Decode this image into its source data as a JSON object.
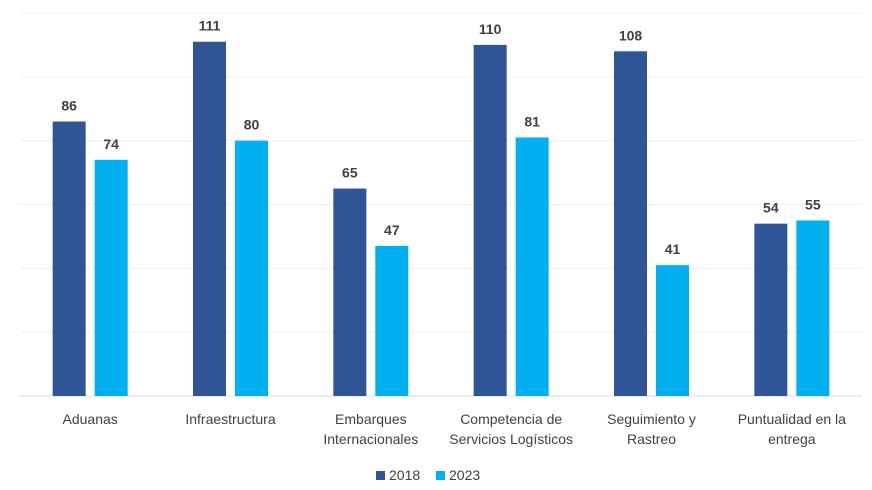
{
  "chart_data": {
    "type": "bar",
    "categories": [
      [
        "Aduanas"
      ],
      [
        "Infraestructura"
      ],
      [
        "Embarques",
        "Internacionales"
      ],
      [
        "Competencia de",
        "Servicios Logísticos"
      ],
      [
        "Seguimiento y",
        "Rastreo"
      ],
      [
        "Puntualidad en la",
        "entrega"
      ]
    ],
    "series": [
      {
        "name": "2018",
        "color": "#2f5597",
        "values": [
          86,
          111,
          65,
          110,
          108,
          54
        ]
      },
      {
        "name": "2023",
        "color": "#00b0f0",
        "values": [
          74,
          80,
          47,
          81,
          41,
          55
        ]
      }
    ],
    "ylim": [
      0,
      120
    ],
    "grid": true,
    "legend": "bottom",
    "title": "",
    "xlabel": "",
    "ylabel": ""
  }
}
